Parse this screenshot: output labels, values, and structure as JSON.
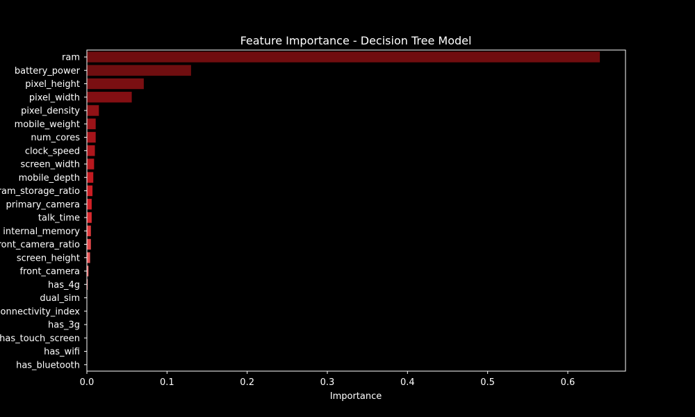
{
  "chart_data": {
    "type": "bar",
    "orientation": "horizontal",
    "title": "Feature Importance - Decision Tree Model",
    "xlabel": "Importance",
    "ylabel": "",
    "xlim": [
      0,
      0.672
    ],
    "xticks": [
      0.0,
      0.1,
      0.2,
      0.3,
      0.4,
      0.5,
      0.6
    ],
    "xtick_labels": [
      "0.0",
      "0.1",
      "0.2",
      "0.3",
      "0.4",
      "0.5",
      "0.6"
    ],
    "grid": false,
    "legend": "none",
    "categories": [
      "ram",
      "battery_power",
      "pixel_height",
      "pixel_width",
      "pixel_density",
      "mobile_weight",
      "num_cores",
      "clock_speed",
      "screen_width",
      "mobile_depth",
      "ram_storage_ratio",
      "primary_camera",
      "talk_time",
      "internal_memory",
      "front_camera_ratio",
      "screen_height",
      "front_camera",
      "has_4g",
      "dual_sim",
      "connectivity_index",
      "has_3g",
      "has_touch_screen",
      "has_wifi",
      "has_bluetooth"
    ],
    "values": [
      0.64,
      0.13,
      0.071,
      0.056,
      0.015,
      0.011,
      0.011,
      0.01,
      0.009,
      0.008,
      0.007,
      0.006,
      0.006,
      0.005,
      0.005,
      0.004,
      0.002,
      0.001,
      0.0,
      0.0,
      0.0,
      0.0,
      0.0,
      0.0
    ],
    "colors": [
      "#700d0f",
      "#6f0e10",
      "#7a0f12",
      "#830f13",
      "#911216",
      "#9c1318",
      "#a5141a",
      "#ae161c",
      "#b8181e",
      "#c21a20",
      "#cb1d23",
      "#d32026",
      "#da2a2f",
      "#df3a3d",
      "#e44a4c",
      "#e85a5b",
      "#ec6a6a",
      "#f07a79",
      "#f38987",
      "#f59896",
      "#f7a6a4",
      "#f9b4b2",
      "#fbc2c0",
      "#fcd0ce"
    ]
  }
}
